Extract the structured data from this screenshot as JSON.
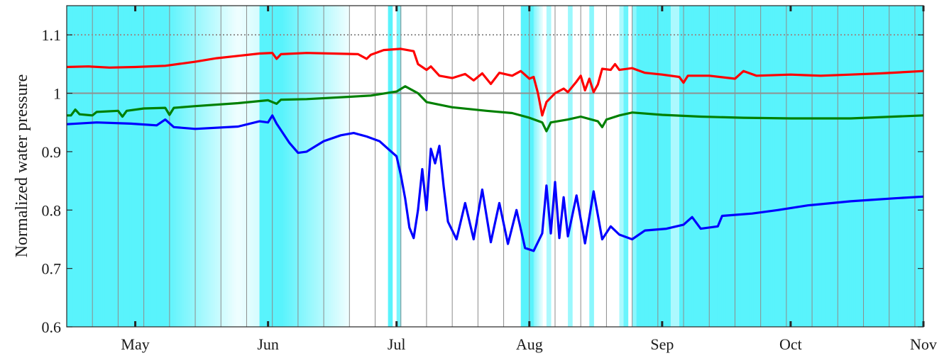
{
  "chart_data": {
    "type": "line",
    "title": "",
    "xlabel": "",
    "ylabel": "Normalized water pressure",
    "ylim": [
      0.6,
      1.15
    ],
    "xlim": [
      "2015-04-15",
      "2015-11-01"
    ],
    "yticks": [
      0.6,
      0.7,
      0.8,
      0.9,
      1,
      1.1
    ],
    "ytick_labels": [
      "0.6",
      "0.7",
      "0.8",
      "0.9",
      "1",
      "1.1"
    ],
    "xticks": [
      "2015-05-01",
      "2015-06-01",
      "2015-07-01",
      "2015-08-01",
      "2015-09-01",
      "2015-10-01",
      "2015-11-01"
    ],
    "xtick_labels": [
      "May",
      "Jun",
      "Jul",
      "Aug",
      "Sep",
      "Oct",
      "Nov"
    ],
    "grid": "vertical lines every ~6 days",
    "reference_lines": [
      {
        "y": 1.0,
        "style": "solid",
        "color": "#909090"
      },
      {
        "y": 1.1,
        "style": "dotted",
        "color": "#909090"
      }
    ],
    "background_shading": {
      "color": "#59F3FC",
      "meaning_levels": "1 = fully shaded, 0 = white",
      "segments": [
        {
          "start": "2015-04-15",
          "end": "2015-05-08",
          "level_start": 1,
          "level_end": 1
        },
        {
          "start": "2015-05-08",
          "end": "2015-05-25",
          "level_start": 1,
          "level_end": 0.1
        },
        {
          "start": "2015-05-25",
          "end": "2015-05-30",
          "level_start": 0.1,
          "level_end": 0.25
        },
        {
          "start": "2015-05-30",
          "end": "2015-06-04",
          "level_start": 1,
          "level_end": 1
        },
        {
          "start": "2015-06-04",
          "end": "2015-06-20",
          "level_start": 1,
          "level_end": 0.1
        },
        {
          "start": "2015-06-29",
          "end": "2015-06-30",
          "level_start": 1,
          "level_end": 1
        },
        {
          "start": "2015-07-01",
          "end": "2015-07-02",
          "level_start": 0.8,
          "level_end": 0.8
        },
        {
          "start": "2015-07-30",
          "end": "2015-08-02",
          "level_start": 1,
          "level_end": 1
        },
        {
          "start": "2015-08-02",
          "end": "2015-08-04",
          "level_start": 0.7,
          "level_end": 0.2
        },
        {
          "start": "2015-08-05",
          "end": "2015-08-06",
          "level_start": 0.5,
          "level_end": 0.5
        },
        {
          "start": "2015-08-10",
          "end": "2015-08-11",
          "level_start": 0.6,
          "level_end": 0.6
        },
        {
          "start": "2015-08-15",
          "end": "2015-08-16",
          "level_start": 0.7,
          "level_end": 0.7
        },
        {
          "start": "2015-08-22",
          "end": "2015-08-23",
          "level_start": 0.5,
          "level_end": 0.5
        },
        {
          "start": "2015-08-23",
          "end": "2015-08-24",
          "level_start": 0.9,
          "level_end": 0.9
        },
        {
          "start": "2015-08-25",
          "end": "2015-08-26",
          "level_start": 0.7,
          "level_end": 0.7
        },
        {
          "start": "2015-08-26",
          "end": "2015-09-03",
          "level_start": 1,
          "level_end": 1
        },
        {
          "start": "2015-09-03",
          "end": "2015-09-05",
          "level_start": 0.5,
          "level_end": 0.5
        },
        {
          "start": "2015-09-05",
          "end": "2015-11-01",
          "level_start": 1,
          "level_end": 1
        }
      ]
    },
    "series": [
      {
        "color": "#FF0000",
        "points": [
          [
            "2015-04-15",
            1.045
          ],
          [
            "2015-04-20",
            1.046
          ],
          [
            "2015-04-25",
            1.044
          ],
          [
            "2015-05-01",
            1.045
          ],
          [
            "2015-05-08",
            1.047
          ],
          [
            "2015-05-15",
            1.054
          ],
          [
            "2015-05-20",
            1.06
          ],
          [
            "2015-05-25",
            1.064
          ],
          [
            "2015-05-30",
            1.068
          ],
          [
            "2015-06-02",
            1.069
          ],
          [
            "2015-06-03",
            1.059
          ],
          [
            "2015-06-04",
            1.067
          ],
          [
            "2015-06-10",
            1.069
          ],
          [
            "2015-06-16",
            1.068
          ],
          [
            "2015-06-22",
            1.067
          ],
          [
            "2015-06-24",
            1.059
          ],
          [
            "2015-06-25",
            1.066
          ],
          [
            "2015-06-28",
            1.074
          ],
          [
            "2015-07-02",
            1.076
          ],
          [
            "2015-07-05",
            1.072
          ],
          [
            "2015-07-06",
            1.05
          ],
          [
            "2015-07-08",
            1.04
          ],
          [
            "2015-07-09",
            1.046
          ],
          [
            "2015-07-11",
            1.03
          ],
          [
            "2015-07-14",
            1.026
          ],
          [
            "2015-07-17",
            1.033
          ],
          [
            "2015-07-19",
            1.022
          ],
          [
            "2015-07-21",
            1.034
          ],
          [
            "2015-07-23",
            1.016
          ],
          [
            "2015-07-25",
            1.035
          ],
          [
            "2015-07-28",
            1.03
          ],
          [
            "2015-07-30",
            1.038
          ],
          [
            "2015-08-01",
            1.025
          ],
          [
            "2015-08-02",
            1.028
          ],
          [
            "2015-08-03",
            1.0
          ],
          [
            "2015-08-04",
            0.962
          ],
          [
            "2015-08-05",
            0.985
          ],
          [
            "2015-08-07",
            1.0
          ],
          [
            "2015-08-09",
            1.008
          ],
          [
            "2015-08-10",
            1.002
          ],
          [
            "2015-08-12",
            1.02
          ],
          [
            "2015-08-13",
            1.03
          ],
          [
            "2015-08-14",
            1.005
          ],
          [
            "2015-08-15",
            1.025
          ],
          [
            "2015-08-16",
            1.002
          ],
          [
            "2015-08-17",
            1.015
          ],
          [
            "2015-08-18",
            1.042
          ],
          [
            "2015-08-20",
            1.04
          ],
          [
            "2015-08-21",
            1.05
          ],
          [
            "2015-08-22",
            1.04
          ],
          [
            "2015-08-25",
            1.043
          ],
          [
            "2015-08-28",
            1.035
          ],
          [
            "2015-09-01",
            1.032
          ],
          [
            "2015-09-05",
            1.028
          ],
          [
            "2015-09-06",
            1.018
          ],
          [
            "2015-09-07",
            1.03
          ],
          [
            "2015-09-12",
            1.03
          ],
          [
            "2015-09-18",
            1.025
          ],
          [
            "2015-09-20",
            1.038
          ],
          [
            "2015-09-23",
            1.03
          ],
          [
            "2015-10-01",
            1.032
          ],
          [
            "2015-10-08",
            1.03
          ],
          [
            "2015-10-15",
            1.032
          ],
          [
            "2015-10-22",
            1.034
          ],
          [
            "2015-11-01",
            1.038
          ]
        ]
      },
      {
        "color": "#008000",
        "points": [
          [
            "2015-04-15",
            0.962
          ],
          [
            "2015-04-16",
            0.962
          ],
          [
            "2015-04-17",
            0.972
          ],
          [
            "2015-04-18",
            0.964
          ],
          [
            "2015-04-21",
            0.962
          ],
          [
            "2015-04-22",
            0.968
          ],
          [
            "2015-04-27",
            0.97
          ],
          [
            "2015-04-28",
            0.96
          ],
          [
            "2015-04-29",
            0.97
          ],
          [
            "2015-05-03",
            0.974
          ],
          [
            "2015-05-08",
            0.975
          ],
          [
            "2015-05-09",
            0.963
          ],
          [
            "2015-05-10",
            0.975
          ],
          [
            "2015-05-15",
            0.978
          ],
          [
            "2015-05-25",
            0.983
          ],
          [
            "2015-06-01",
            0.988
          ],
          [
            "2015-06-03",
            0.982
          ],
          [
            "2015-06-04",
            0.989
          ],
          [
            "2015-06-10",
            0.99
          ],
          [
            "2015-06-20",
            0.994
          ],
          [
            "2015-06-25",
            0.996
          ],
          [
            "2015-07-01",
            1.003
          ],
          [
            "2015-07-03",
            1.012
          ],
          [
            "2015-07-06",
            1.0
          ],
          [
            "2015-07-08",
            0.985
          ],
          [
            "2015-07-14",
            0.976
          ],
          [
            "2015-07-22",
            0.97
          ],
          [
            "2015-07-28",
            0.966
          ],
          [
            "2015-08-01",
            0.958
          ],
          [
            "2015-08-04",
            0.95
          ],
          [
            "2015-08-05",
            0.935
          ],
          [
            "2015-08-06",
            0.95
          ],
          [
            "2015-08-10",
            0.955
          ],
          [
            "2015-08-13",
            0.96
          ],
          [
            "2015-08-17",
            0.952
          ],
          [
            "2015-08-18",
            0.942
          ],
          [
            "2015-08-19",
            0.955
          ],
          [
            "2015-08-22",
            0.962
          ],
          [
            "2015-08-25",
            0.967
          ],
          [
            "2015-09-01",
            0.963
          ],
          [
            "2015-09-10",
            0.96
          ],
          [
            "2015-09-20",
            0.958
          ],
          [
            "2015-10-01",
            0.957
          ],
          [
            "2015-10-15",
            0.957
          ],
          [
            "2015-11-01",
            0.962
          ]
        ]
      },
      {
        "color": "#0000FF",
        "points": [
          [
            "2015-04-15",
            0.947
          ],
          [
            "2015-04-22",
            0.95
          ],
          [
            "2015-04-30",
            0.948
          ],
          [
            "2015-05-06",
            0.945
          ],
          [
            "2015-05-08",
            0.955
          ],
          [
            "2015-05-10",
            0.942
          ],
          [
            "2015-05-15",
            0.939
          ],
          [
            "2015-05-25",
            0.943
          ],
          [
            "2015-05-30",
            0.952
          ],
          [
            "2015-06-01",
            0.95
          ],
          [
            "2015-06-02",
            0.962
          ],
          [
            "2015-06-03",
            0.948
          ],
          [
            "2015-06-06",
            0.915
          ],
          [
            "2015-06-08",
            0.898
          ],
          [
            "2015-06-10",
            0.9
          ],
          [
            "2015-06-14",
            0.918
          ],
          [
            "2015-06-18",
            0.928
          ],
          [
            "2015-06-21",
            0.932
          ],
          [
            "2015-06-24",
            0.926
          ],
          [
            "2015-06-27",
            0.918
          ],
          [
            "2015-06-29",
            0.905
          ],
          [
            "2015-07-01",
            0.892
          ],
          [
            "2015-07-02",
            0.86
          ],
          [
            "2015-07-03",
            0.82
          ],
          [
            "2015-07-04",
            0.77
          ],
          [
            "2015-07-05",
            0.752
          ],
          [
            "2015-07-06",
            0.8
          ],
          [
            "2015-07-07",
            0.87
          ],
          [
            "2015-07-08",
            0.8
          ],
          [
            "2015-07-09",
            0.905
          ],
          [
            "2015-07-10",
            0.88
          ],
          [
            "2015-07-11",
            0.91
          ],
          [
            "2015-07-12",
            0.84
          ],
          [
            "2015-07-13",
            0.78
          ],
          [
            "2015-07-15",
            0.75
          ],
          [
            "2015-07-17",
            0.812
          ],
          [
            "2015-07-19",
            0.75
          ],
          [
            "2015-07-21",
            0.835
          ],
          [
            "2015-07-23",
            0.745
          ],
          [
            "2015-07-25",
            0.812
          ],
          [
            "2015-07-27",
            0.742
          ],
          [
            "2015-07-29",
            0.8
          ],
          [
            "2015-07-31",
            0.735
          ],
          [
            "2015-08-02",
            0.73
          ],
          [
            "2015-08-04",
            0.76
          ],
          [
            "2015-08-05",
            0.842
          ],
          [
            "2015-08-06",
            0.76
          ],
          [
            "2015-08-07",
            0.848
          ],
          [
            "2015-08-08",
            0.752
          ],
          [
            "2015-08-09",
            0.822
          ],
          [
            "2015-08-10",
            0.755
          ],
          [
            "2015-08-12",
            0.825
          ],
          [
            "2015-08-14",
            0.743
          ],
          [
            "2015-08-16",
            0.832
          ],
          [
            "2015-08-18",
            0.75
          ],
          [
            "2015-08-20",
            0.772
          ],
          [
            "2015-08-22",
            0.758
          ],
          [
            "2015-08-25",
            0.75
          ],
          [
            "2015-08-28",
            0.765
          ],
          [
            "2015-09-02",
            0.768
          ],
          [
            "2015-09-06",
            0.775
          ],
          [
            "2015-09-08",
            0.788
          ],
          [
            "2015-09-10",
            0.768
          ],
          [
            "2015-09-14",
            0.772
          ],
          [
            "2015-09-15",
            0.79
          ],
          [
            "2015-09-22",
            0.794
          ],
          [
            "2015-09-28",
            0.8
          ],
          [
            "2015-10-05",
            0.808
          ],
          [
            "2015-10-15",
            0.815
          ],
          [
            "2015-10-25",
            0.82
          ],
          [
            "2015-11-01",
            0.823
          ]
        ]
      }
    ]
  }
}
